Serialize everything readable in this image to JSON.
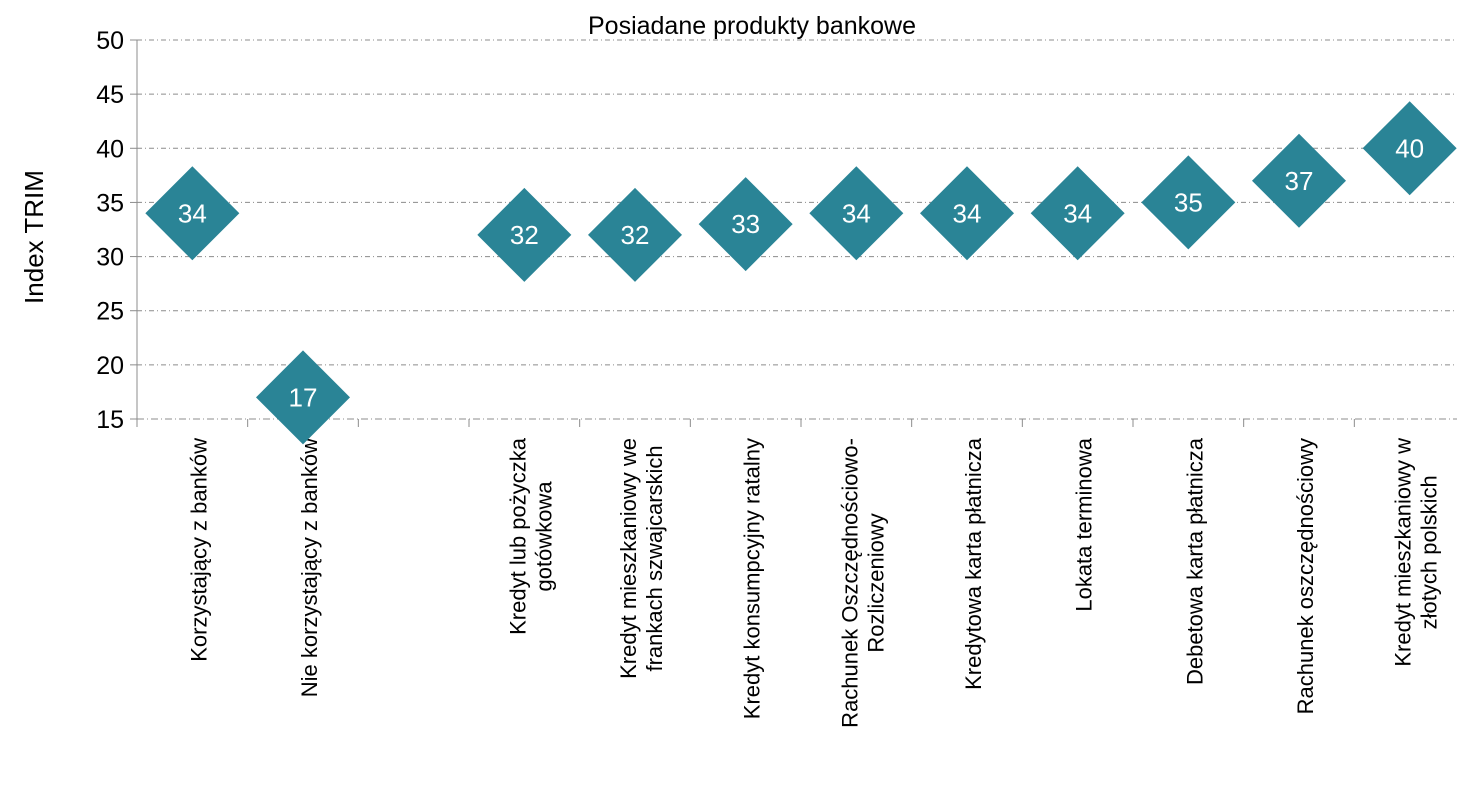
{
  "chart_data": {
    "type": "scatter",
    "title": "Posiadane produkty bankowe",
    "xlabel": "",
    "ylabel": "Index TRIM",
    "ylim": [
      15,
      50
    ],
    "yticks": [
      15,
      20,
      25,
      30,
      35,
      40,
      45,
      50
    ],
    "grid": true,
    "marker": "diamond",
    "marker_color": "#2a8496",
    "categories": [
      [
        "Korzystający z banków"
      ],
      [
        "Nie korzystający z banków"
      ],
      [],
      [
        "Kredyt lub pożyczka",
        "gotówkowa"
      ],
      [
        "Kredyt mieszkaniowy we",
        "frankach szwajcarskich"
      ],
      [
        "Kredyt konsumpcyjny ratalny"
      ],
      [
        "Rachunek Oszczędnościowo-",
        "Rozliczeniowy"
      ],
      [
        "Kredytowa karta płatnicza"
      ],
      [
        "Lokata terminowa"
      ],
      [
        "Debetowa karta płatnicza"
      ],
      [
        "Rachunek oszczędnościowy"
      ],
      [
        "Kredyt mieszkaniowy w",
        "złotych polskich"
      ]
    ],
    "values": [
      34,
      17,
      null,
      32,
      32,
      33,
      34,
      34,
      34,
      35,
      37,
      40
    ]
  }
}
